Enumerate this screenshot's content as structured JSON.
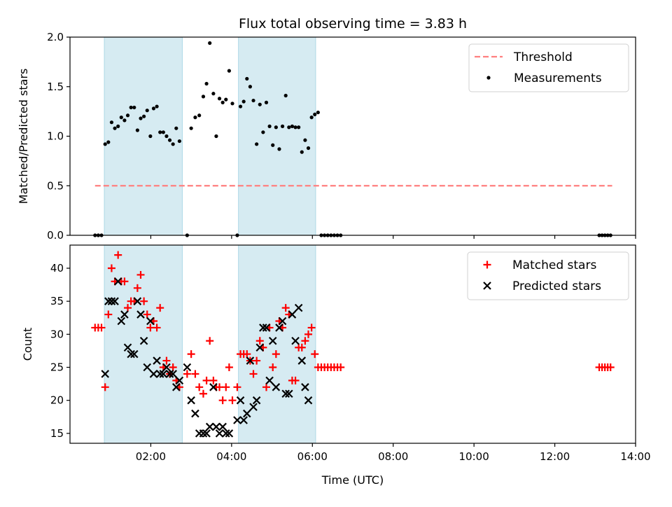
{
  "title": "Flux total observing time = 3.83 h",
  "xlabel": "Time (UTC)",
  "colors": {
    "band": "#add8e6",
    "threshold": "#ff7f7f",
    "measurement": "#000000",
    "matched": "#ff0000",
    "predicted": "#000000"
  },
  "chart_data": [
    {
      "type": "scatter",
      "panel": "top",
      "ylabel": "Matched/Predicted stars",
      "x_unit": "hours UTC",
      "xlim": [
        0,
        14
      ],
      "ylim": [
        0,
        2.0
      ],
      "yticks": [
        0.0,
        0.5,
        1.0,
        1.5,
        2.0
      ],
      "ytick_labels": [
        "0.0",
        "0.5",
        "1.0",
        "1.5",
        "2.0"
      ],
      "shaded_intervals": [
        [
          0.85,
          2.78
        ],
        [
          4.17,
          6.08
        ]
      ],
      "legend": {
        "placement": "top-right",
        "entries": [
          "Threshold",
          "Measurements"
        ]
      },
      "threshold": {
        "name": "Threshold",
        "y": 0.5,
        "x_range": [
          0.62,
          13.42
        ],
        "style": "dashed"
      },
      "series": [
        {
          "name": "Measurements",
          "marker": "dot",
          "points": [
            [
              0.62,
              0
            ],
            [
              0.7,
              0
            ],
            [
              0.78,
              0
            ],
            [
              0.87,
              0.92
            ],
            [
              0.95,
              0.94
            ],
            [
              1.03,
              1.14
            ],
            [
              1.11,
              1.08
            ],
            [
              1.19,
              1.1
            ],
            [
              1.27,
              1.19
            ],
            [
              1.35,
              1.16
            ],
            [
              1.43,
              1.21
            ],
            [
              1.51,
              1.29
            ],
            [
              1.59,
              1.29
            ],
            [
              1.67,
              1.06
            ],
            [
              1.75,
              1.18
            ],
            [
              1.83,
              1.2
            ],
            [
              1.91,
              1.26
            ],
            [
              1.99,
              1.0
            ],
            [
              2.07,
              1.28
            ],
            [
              2.15,
              1.3
            ],
            [
              2.23,
              1.04
            ],
            [
              2.31,
              1.04
            ],
            [
              2.39,
              1.0
            ],
            [
              2.47,
              0.96
            ],
            [
              2.55,
              0.92
            ],
            [
              2.63,
              1.08
            ],
            [
              2.71,
              0.95
            ],
            [
              2.9,
              0
            ],
            [
              3.0,
              1.08
            ],
            [
              3.1,
              1.19
            ],
            [
              3.2,
              1.21
            ],
            [
              3.3,
              1.4
            ],
            [
              3.38,
              1.53
            ],
            [
              3.46,
              1.94
            ],
            [
              3.55,
              1.43
            ],
            [
              3.62,
              1.0
            ],
            [
              3.7,
              1.38
            ],
            [
              3.78,
              1.34
            ],
            [
              3.86,
              1.37
            ],
            [
              3.94,
              1.66
            ],
            [
              4.02,
              1.33
            ],
            [
              4.14,
              0
            ],
            [
              4.22,
              1.3
            ],
            [
              4.3,
              1.35
            ],
            [
              4.38,
              1.58
            ],
            [
              4.46,
              1.5
            ],
            [
              4.54,
              1.36
            ],
            [
              4.62,
              0.92
            ],
            [
              4.7,
              1.32
            ],
            [
              4.78,
              1.04
            ],
            [
              4.86,
              1.34
            ],
            [
              4.94,
              1.1
            ],
            [
              5.02,
              0.91
            ],
            [
              5.1,
              1.09
            ],
            [
              5.18,
              0.87
            ],
            [
              5.26,
              1.1
            ],
            [
              5.34,
              1.41
            ],
            [
              5.42,
              1.09
            ],
            [
              5.5,
              1.1
            ],
            [
              5.58,
              1.09
            ],
            [
              5.66,
              1.09
            ],
            [
              5.74,
              0.84
            ],
            [
              5.82,
              0.96
            ],
            [
              5.9,
              0.88
            ],
            [
              5.98,
              1.19
            ],
            [
              6.06,
              1.22
            ],
            [
              6.14,
              1.24
            ],
            [
              6.22,
              0
            ],
            [
              6.3,
              0
            ],
            [
              6.38,
              0
            ],
            [
              6.46,
              0
            ],
            [
              6.54,
              0
            ],
            [
              6.62,
              0
            ],
            [
              6.7,
              0
            ],
            [
              13.1,
              0
            ],
            [
              13.17,
              0
            ],
            [
              13.24,
              0
            ],
            [
              13.31,
              0
            ],
            [
              13.38,
              0
            ]
          ]
        }
      ]
    },
    {
      "type": "scatter",
      "panel": "bottom",
      "ylabel": "Count",
      "x_unit": "hours UTC",
      "xlim": [
        0,
        14
      ],
      "ylim": [
        13.5,
        43.5
      ],
      "yticks": [
        15,
        20,
        25,
        30,
        35,
        40
      ],
      "ytick_labels": [
        "15",
        "20",
        "25",
        "30",
        "35",
        "40"
      ],
      "xticks": [
        2,
        4,
        6,
        8,
        10,
        12,
        14
      ],
      "xtick_labels": [
        "02:00",
        "04:00",
        "06:00",
        "08:00",
        "10:00",
        "12:00",
        "14:00"
      ],
      "shaded_intervals": [
        [
          0.85,
          2.78
        ],
        [
          4.17,
          6.08
        ]
      ],
      "legend": {
        "placement": "top-right",
        "entries": [
          "Matched stars",
          "Predicted stars"
        ]
      },
      "series": [
        {
          "name": "Matched stars",
          "marker": "plus",
          "points": [
            [
              0.62,
              31
            ],
            [
              0.7,
              31
            ],
            [
              0.78,
              31
            ],
            [
              0.87,
              22
            ],
            [
              0.95,
              33
            ],
            [
              1.03,
              40
            ],
            [
              1.11,
              38
            ],
            [
              1.19,
              42
            ],
            [
              1.27,
              38
            ],
            [
              1.35,
              38
            ],
            [
              1.43,
              34
            ],
            [
              1.51,
              35
            ],
            [
              1.59,
              35
            ],
            [
              1.67,
              37
            ],
            [
              1.75,
              39
            ],
            [
              1.83,
              35
            ],
            [
              1.91,
              33
            ],
            [
              1.99,
              31
            ],
            [
              2.07,
              32
            ],
            [
              2.15,
              31
            ],
            [
              2.23,
              34
            ],
            [
              2.31,
              25
            ],
            [
              2.39,
              26
            ],
            [
              2.47,
              24
            ],
            [
              2.55,
              25
            ],
            [
              2.63,
              23
            ],
            [
              2.71,
              22
            ],
            [
              2.9,
              24
            ],
            [
              3.0,
              27
            ],
            [
              3.1,
              24
            ],
            [
              3.2,
              22
            ],
            [
              3.3,
              21
            ],
            [
              3.38,
              23
            ],
            [
              3.46,
              29
            ],
            [
              3.55,
              23
            ],
            [
              3.62,
              22
            ],
            [
              3.7,
              22
            ],
            [
              3.78,
              20
            ],
            [
              3.86,
              22
            ],
            [
              3.94,
              25
            ],
            [
              4.02,
              20
            ],
            [
              4.14,
              22
            ],
            [
              4.22,
              27
            ],
            [
              4.3,
              27
            ],
            [
              4.38,
              27
            ],
            [
              4.46,
              26
            ],
            [
              4.54,
              24
            ],
            [
              4.62,
              26
            ],
            [
              4.7,
              29
            ],
            [
              4.78,
              28
            ],
            [
              4.86,
              22
            ],
            [
              4.94,
              31
            ],
            [
              5.02,
              25
            ],
            [
              5.1,
              27
            ],
            [
              5.18,
              32
            ],
            [
              5.26,
              31
            ],
            [
              5.34,
              34
            ],
            [
              5.42,
              33
            ],
            [
              5.5,
              23
            ],
            [
              5.58,
              23
            ],
            [
              5.66,
              28
            ],
            [
              5.74,
              28
            ],
            [
              5.82,
              29
            ],
            [
              5.9,
              30
            ],
            [
              5.98,
              31
            ],
            [
              6.06,
              27
            ],
            [
              6.14,
              25
            ],
            [
              6.22,
              25
            ],
            [
              6.3,
              25
            ],
            [
              6.38,
              25
            ],
            [
              6.46,
              25
            ],
            [
              6.54,
              25
            ],
            [
              6.62,
              25
            ],
            [
              6.7,
              25
            ],
            [
              13.1,
              25
            ],
            [
              13.17,
              25
            ],
            [
              13.24,
              25
            ],
            [
              13.31,
              25
            ],
            [
              13.38,
              25
            ]
          ]
        },
        {
          "name": "Predicted stars",
          "marker": "x",
          "points": [
            [
              0.87,
              24
            ],
            [
              0.95,
              35
            ],
            [
              1.03,
              35
            ],
            [
              1.11,
              35
            ],
            [
              1.19,
              38
            ],
            [
              1.27,
              32
            ],
            [
              1.35,
              33
            ],
            [
              1.43,
              28
            ],
            [
              1.51,
              27
            ],
            [
              1.59,
              27
            ],
            [
              1.67,
              35
            ],
            [
              1.75,
              33
            ],
            [
              1.83,
              29
            ],
            [
              1.91,
              25
            ],
            [
              1.99,
              32
            ],
            [
              2.07,
              24
            ],
            [
              2.15,
              26
            ],
            [
              2.23,
              24
            ],
            [
              2.31,
              24
            ],
            [
              2.39,
              25
            ],
            [
              2.47,
              24
            ],
            [
              2.55,
              24
            ],
            [
              2.63,
              22
            ],
            [
              2.71,
              23
            ],
            [
              2.9,
              25
            ],
            [
              3.0,
              20
            ],
            [
              3.1,
              18
            ],
            [
              3.2,
              15
            ],
            [
              3.3,
              15
            ],
            [
              3.38,
              15
            ],
            [
              3.46,
              16
            ],
            [
              3.55,
              22
            ],
            [
              3.62,
              16
            ],
            [
              3.7,
              15
            ],
            [
              3.78,
              16
            ],
            [
              3.86,
              15
            ],
            [
              3.94,
              15
            ],
            [
              4.14,
              17
            ],
            [
              4.22,
              20
            ],
            [
              4.3,
              17
            ],
            [
              4.38,
              18
            ],
            [
              4.46,
              26
            ],
            [
              4.54,
              19
            ],
            [
              4.62,
              20
            ],
            [
              4.7,
              28
            ],
            [
              4.78,
              31
            ],
            [
              4.86,
              31
            ],
            [
              4.94,
              23
            ],
            [
              5.02,
              29
            ],
            [
              5.1,
              22
            ],
            [
              5.18,
              31
            ],
            [
              5.26,
              32
            ],
            [
              5.34,
              21
            ],
            [
              5.42,
              21
            ],
            [
              5.5,
              33
            ],
            [
              5.58,
              29
            ],
            [
              5.66,
              34
            ],
            [
              5.74,
              26
            ],
            [
              5.82,
              22
            ],
            [
              5.9,
              20
            ]
          ]
        }
      ]
    }
  ]
}
